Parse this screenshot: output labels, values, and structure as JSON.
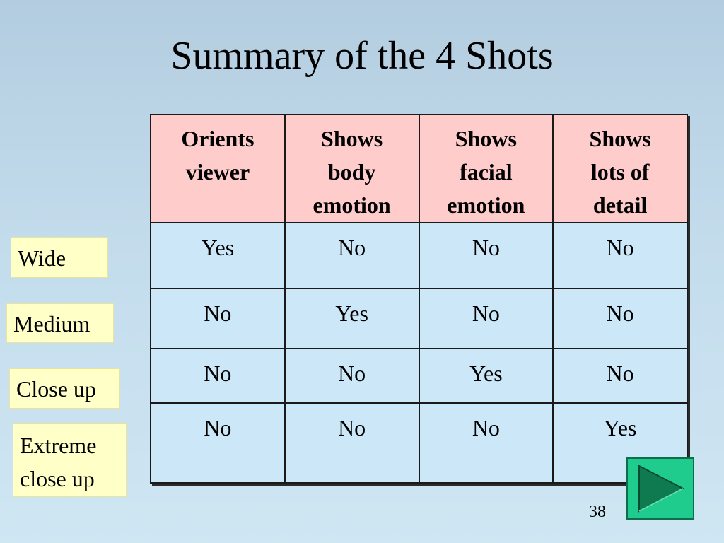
{
  "slide": {
    "title": "Summary of the 4 Shots",
    "page_number": "38"
  },
  "table": {
    "headers": [
      [
        "Orients",
        "viewer"
      ],
      [
        "Shows",
        "body",
        "emotion"
      ],
      [
        "Shows",
        "facial",
        "emotion"
      ],
      [
        "Shows",
        "lots of",
        "detail"
      ]
    ],
    "rows": [
      [
        "Yes",
        "No",
        "No",
        "No"
      ],
      [
        "No",
        "Yes",
        "No",
        "No"
      ],
      [
        "No",
        "No",
        "Yes",
        "No"
      ],
      [
        "No",
        "No",
        "No",
        "Yes"
      ]
    ]
  },
  "shot_labels": [
    [
      "Wide"
    ],
    [
      "Medium"
    ],
    [
      "Close up"
    ],
    [
      "Extreme",
      "close up"
    ]
  ],
  "navigation": {
    "next_icon": "play-right-triangle-icon"
  },
  "colors": {
    "header_bg": "#ffcccc",
    "cell_bg": "#cce8f8",
    "label_bg": "#ffffc8",
    "button_bg": "#1fcc8d",
    "button_arrow": "#0f7a4f"
  }
}
